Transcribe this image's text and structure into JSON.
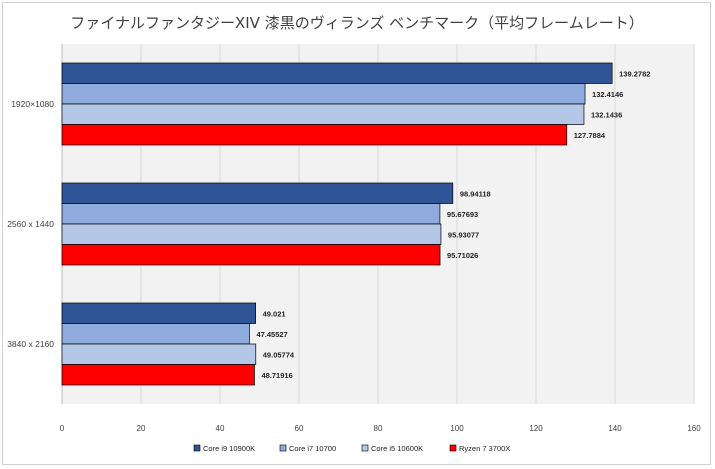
{
  "chart_data": {
    "type": "bar",
    "orientation": "horizontal",
    "title": "ファイナルファンタジーXIV 漆黒のヴィランズ ベンチマーク（平均フレームレート）",
    "categories": [
      "1920×1080",
      "2560 x 1440",
      "3840 x 2160"
    ],
    "series": [
      {
        "name": "Core i9 10900K",
        "color": "#2f5597",
        "values": [
          139.2782,
          98.94118,
          49.021
        ]
      },
      {
        "name": "Core i7 10700",
        "color": "#8faadc",
        "values": [
          132.4146,
          95.67693,
          47.45527
        ]
      },
      {
        "name": "Core i5 10600K",
        "color": "#b4c7e7",
        "values": [
          132.1436,
          95.93077,
          49.05774
        ]
      },
      {
        "name": "Ryzen 7 3700X",
        "color": "#ff0000",
        "values": [
          127.7884,
          95.71026,
          48.71916
        ]
      }
    ],
    "xlim": [
      0,
      160
    ],
    "xticks": [
      0,
      20,
      40,
      60,
      80,
      100,
      120,
      140,
      160
    ],
    "grid": true,
    "legend": "bottom",
    "plot_background": "#f2f2f2"
  }
}
